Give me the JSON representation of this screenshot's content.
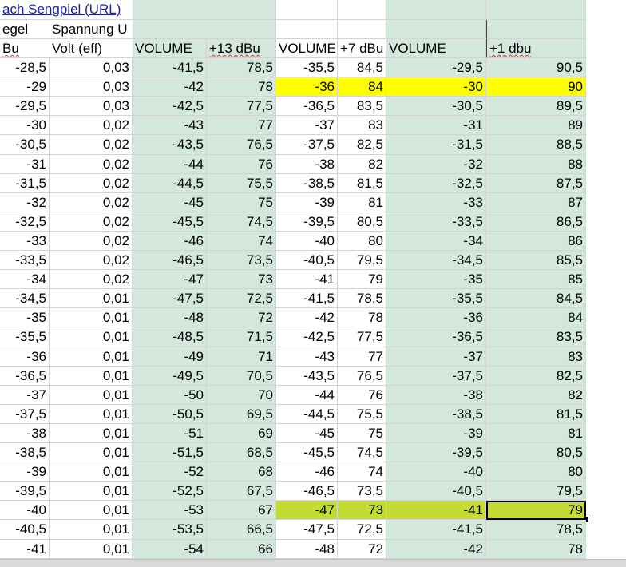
{
  "link_text": "ach Sengpiel (URL)",
  "header_row1": [
    "egel",
    "Spannung U"
  ],
  "header_row2": [
    "Bu",
    "Volt (eff)",
    "VOLUME",
    "+13 dBu",
    "VOLUME",
    "+7 dBu",
    "VOLUME",
    "+1 dbu"
  ],
  "rows": [
    [
      "-28,5",
      "0,03",
      "-41,5",
      "78,5",
      "-35,5",
      "84,5",
      "-29,5",
      "90,5"
    ],
    [
      "-29",
      "0,03",
      "-42",
      "78",
      "-36",
      "84",
      "-30",
      "90"
    ],
    [
      "-29,5",
      "0,03",
      "-42,5",
      "77,5",
      "-36,5",
      "83,5",
      "-30,5",
      "89,5"
    ],
    [
      "-30",
      "0,02",
      "-43",
      "77",
      "-37",
      "83",
      "-31",
      "89"
    ],
    [
      "-30,5",
      "0,02",
      "-43,5",
      "76,5",
      "-37,5",
      "82,5",
      "-31,5",
      "88,5"
    ],
    [
      "-31",
      "0,02",
      "-44",
      "76",
      "-38",
      "82",
      "-32",
      "88"
    ],
    [
      "-31,5",
      "0,02",
      "-44,5",
      "75,5",
      "-38,5",
      "81,5",
      "-32,5",
      "87,5"
    ],
    [
      "-32",
      "0,02",
      "-45",
      "75",
      "-39",
      "81",
      "-33",
      "87"
    ],
    [
      "-32,5",
      "0,02",
      "-45,5",
      "74,5",
      "-39,5",
      "80,5",
      "-33,5",
      "86,5"
    ],
    [
      "-33",
      "0,02",
      "-46",
      "74",
      "-40",
      "80",
      "-34",
      "86"
    ],
    [
      "-33,5",
      "0,02",
      "-46,5",
      "73,5",
      "-40,5",
      "79,5",
      "-34,5",
      "85,5"
    ],
    [
      "-34",
      "0,02",
      "-47",
      "73",
      "-41",
      "79",
      "-35",
      "85"
    ],
    [
      "-34,5",
      "0,01",
      "-47,5",
      "72,5",
      "-41,5",
      "78,5",
      "-35,5",
      "84,5"
    ],
    [
      "-35",
      "0,01",
      "-48",
      "72",
      "-42",
      "78",
      "-36",
      "84"
    ],
    [
      "-35,5",
      "0,01",
      "-48,5",
      "71,5",
      "-42,5",
      "77,5",
      "-36,5",
      "83,5"
    ],
    [
      "-36",
      "0,01",
      "-49",
      "71",
      "-43",
      "77",
      "-37",
      "83"
    ],
    [
      "-36,5",
      "0,01",
      "-49,5",
      "70,5",
      "-43,5",
      "76,5",
      "-37,5",
      "82,5"
    ],
    [
      "-37",
      "0,01",
      "-50",
      "70",
      "-44",
      "76",
      "-38",
      "82"
    ],
    [
      "-37,5",
      "0,01",
      "-50,5",
      "69,5",
      "-44,5",
      "75,5",
      "-38,5",
      "81,5"
    ],
    [
      "-38",
      "0,01",
      "-51",
      "69",
      "-45",
      "75",
      "-39",
      "81"
    ],
    [
      "-38,5",
      "0,01",
      "-51,5",
      "68,5",
      "-45,5",
      "74,5",
      "-39,5",
      "80,5"
    ],
    [
      "-39",
      "0,01",
      "-52",
      "68",
      "-46",
      "74",
      "-40",
      "80"
    ],
    [
      "-39,5",
      "0,01",
      "-52,5",
      "67,5",
      "-46,5",
      "73,5",
      "-40,5",
      "79,5"
    ],
    [
      "-40",
      "0,01",
      "-53",
      "67",
      "-47",
      "73",
      "-41",
      "79"
    ],
    [
      "-40,5",
      "0,01",
      "-53,5",
      "66,5",
      "-47,5",
      "72,5",
      "-41,5",
      "78,5"
    ],
    [
      "-41",
      "0,01",
      "-54",
      "66",
      "-48",
      "72",
      "-42",
      "78"
    ]
  ],
  "colors": {
    "volume_fill": "#d3e7dd",
    "highlight_yellow": "#ffff00",
    "highlight_green": "#c4dc32",
    "gridline": "#d4d4d4"
  },
  "highlighted_yellow_row": 1,
  "highlighted_green_row": 23,
  "active_cell": {
    "row": 23,
    "col": 7
  }
}
